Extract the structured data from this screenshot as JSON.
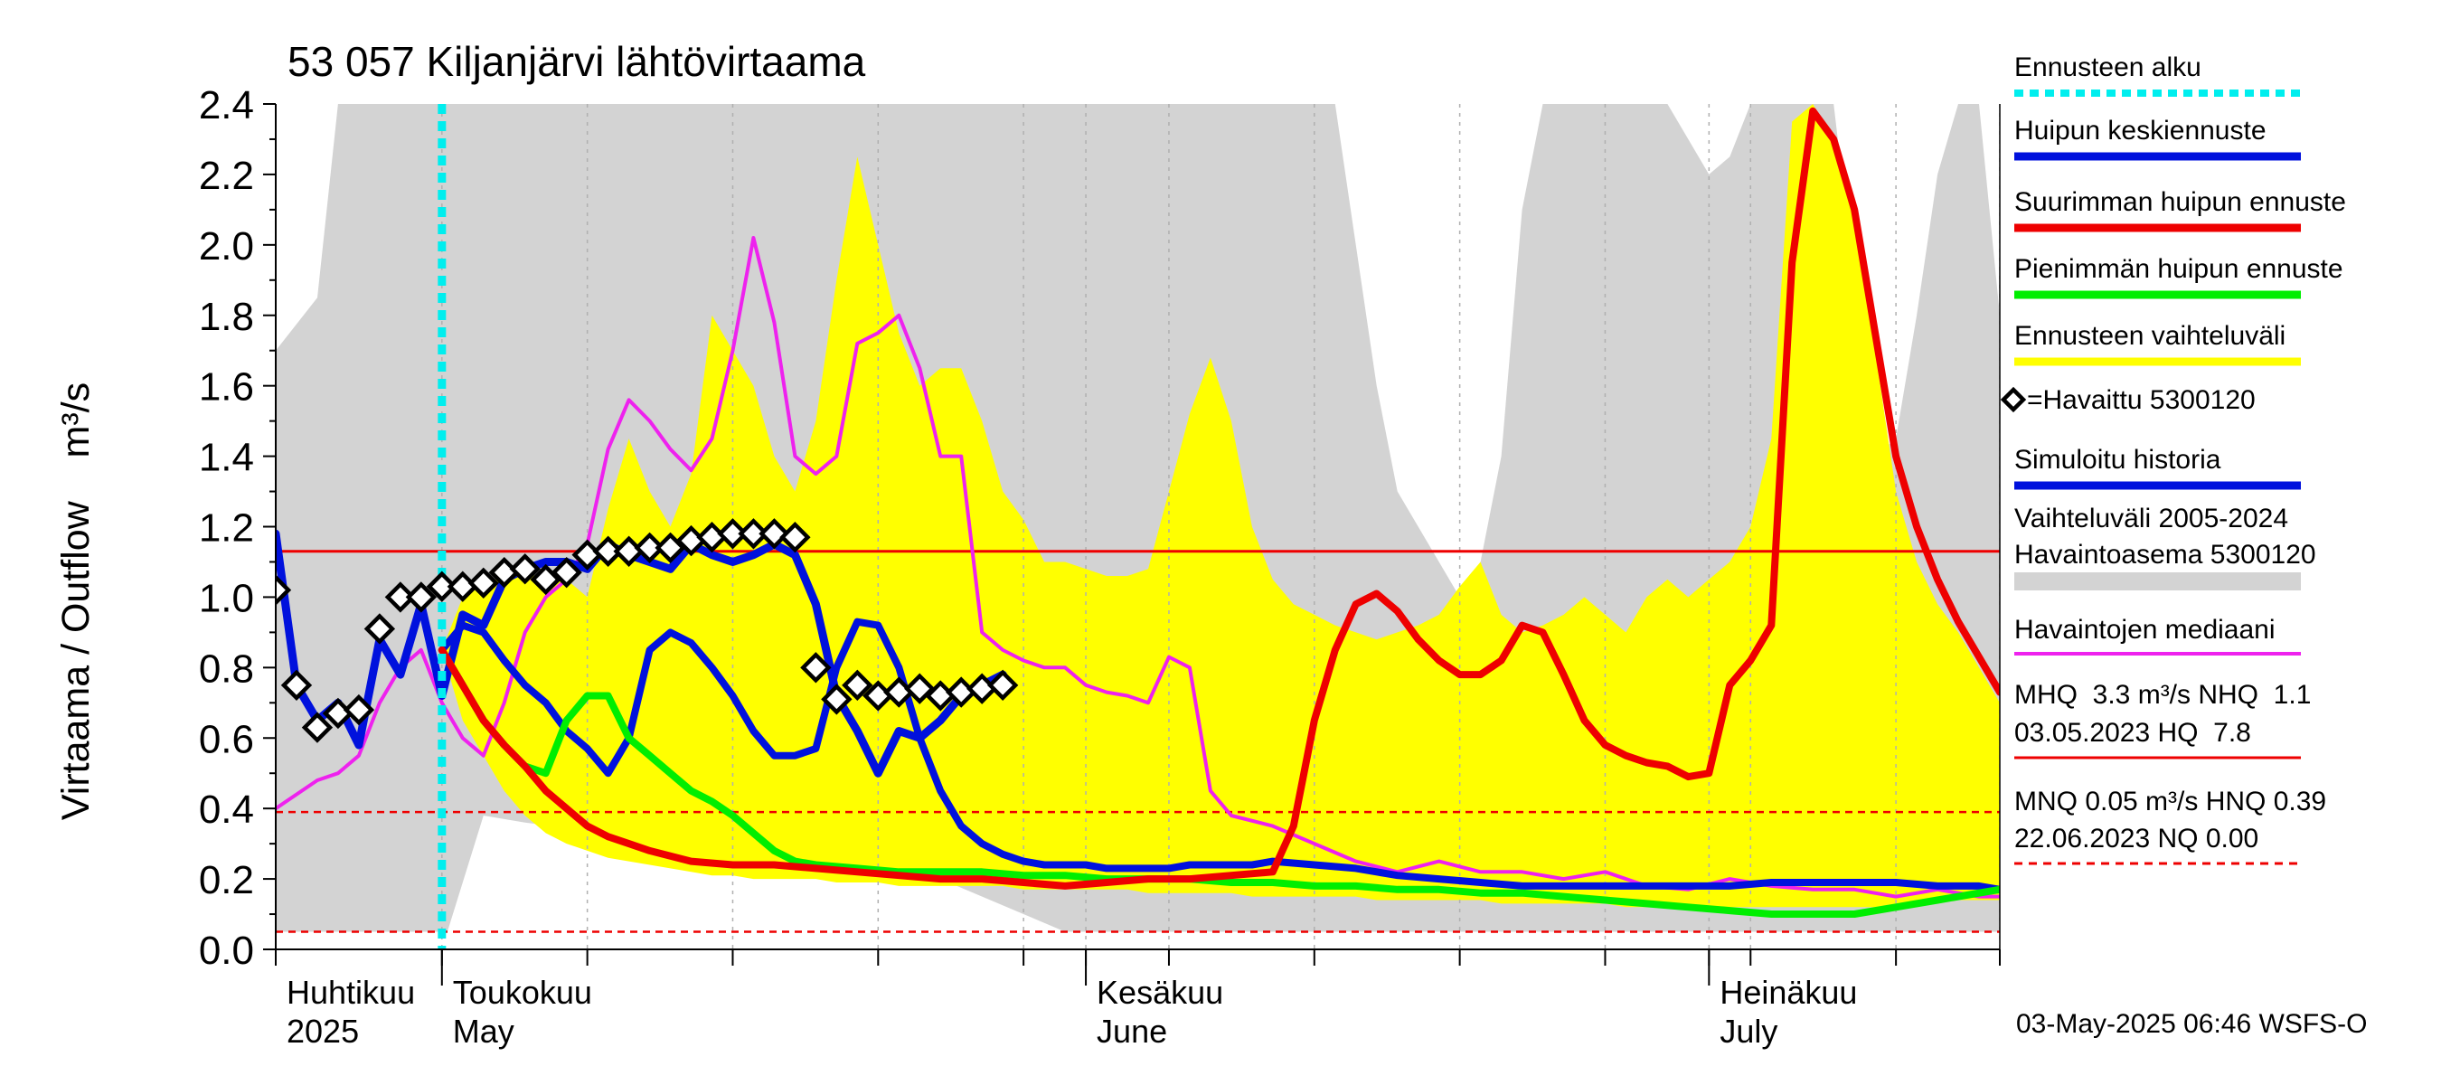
{
  "chart_data": {
    "type": "line",
    "title": "53 057 Kiljanjärvi lähtövirtaama",
    "ylabel": "Virtaama / Outflow    m³/s",
    "ylim": [
      0,
      2.4
    ],
    "xlim": [
      -8,
      75
    ],
    "y_ticks": [
      "0.0",
      "0.2",
      "0.4",
      "0.6",
      "0.8",
      "1.0",
      "1.2",
      "1.4",
      "1.6",
      "1.8",
      "2.0",
      "2.2",
      "2.4"
    ],
    "y_tick_values": [
      0,
      0.2,
      0.4,
      0.6,
      0.8,
      1.0,
      1.2,
      1.4,
      1.6,
      1.8,
      2.0,
      2.2,
      2.4
    ],
    "x_axis_note": "days relative to forecast start 2025-05-01",
    "months": [
      {
        "fi": "Huhtikuu",
        "en": "2025",
        "start_day": -30
      },
      {
        "fi": "Toukokuu",
        "en": "May",
        "start_day": 0
      },
      {
        "fi": "Kesäkuu",
        "en": "June",
        "start_day": 31
      },
      {
        "fi": "Heinäkuu",
        "en": "July",
        "start_day": 61
      }
    ],
    "x_tick_days": [
      -8,
      0,
      7,
      14,
      21,
      28,
      31,
      35,
      42,
      49,
      56,
      61,
      63,
      70,
      75
    ],
    "forecast_start_day": 0,
    "hq_line": 1.13,
    "hnq_line": 0.39,
    "nq_line": 0.05,
    "history_band": {
      "name": "Vaihteluväli 2005-2024 Havaintoasema 5300120",
      "x": [
        -8,
        -6,
        -5,
        -4,
        -3,
        -1,
        0,
        1,
        2,
        3,
        4,
        5,
        7,
        9,
        11,
        13,
        14,
        15,
        17,
        19,
        21,
        23,
        25,
        26,
        27,
        28,
        29,
        30,
        31,
        32,
        33,
        34,
        35,
        36,
        37,
        39,
        40,
        41,
        42,
        43,
        44,
        45,
        46,
        47,
        48,
        49,
        50,
        51,
        52,
        53,
        54,
        55,
        56,
        57,
        58,
        59,
        60,
        61,
        62,
        63,
        64,
        65,
        66,
        67,
        68,
        69,
        70,
        71,
        72,
        73,
        74,
        75
      ],
      "upper": [
        1.7,
        1.85,
        2.4,
        2.4,
        2.4,
        2.4,
        2.4,
        2.4,
        2.4,
        2.4,
        2.4,
        2.4,
        2.4,
        2.4,
        2.4,
        2.4,
        2.4,
        2.4,
        2.4,
        2.4,
        2.4,
        2.4,
        2.4,
        2.4,
        2.4,
        2.4,
        2.4,
        2.4,
        2.4,
        2.4,
        2.4,
        2.4,
        2.4,
        2.4,
        2.4,
        2.4,
        2.4,
        2.4,
        2.4,
        2.4,
        2.0,
        1.6,
        1.3,
        1.2,
        1.1,
        1.0,
        1.1,
        1.4,
        2.1,
        2.4,
        2.4,
        2.4,
        2.4,
        2.4,
        2.4,
        2.4,
        2.3,
        2.2,
        2.25,
        2.4,
        2.4,
        2.4,
        2.4,
        2.4,
        1.9,
        1.4,
        1.45,
        1.8,
        2.2,
        2.4,
        2.4,
        1.8
      ],
      "lower": [
        0.05,
        0.05,
        0.05,
        0.05,
        0.05,
        0.05,
        0.05,
        0.05,
        0.05,
        0.05,
        0.05,
        0.05,
        0.05,
        0.05,
        0.05,
        0.05,
        0.05,
        0.05,
        0.05,
        0.05,
        0.05,
        0.05,
        0.05,
        0.05,
        0.05,
        0.05,
        0.05,
        0.05,
        0.05,
        0.05,
        0.05,
        0.05,
        0.05,
        0.05,
        0.05,
        0.05,
        0.05,
        0.05,
        0.05,
        0.05,
        0.05,
        0.05,
        0.05,
        0.05,
        0.05,
        0.05,
        0.05,
        0.05,
        0.05,
        0.05,
        0.05,
        0.05,
        0.05,
        0.05,
        0.05,
        0.05,
        0.05,
        0.05,
        0.05,
        0.05,
        0.05,
        0.05,
        0.05,
        0.05,
        0.05,
        0.05,
        0.05,
        0.05,
        0.05,
        0.05,
        0.05,
        0.05
      ]
    },
    "white_gap": {
      "x": [
        0,
        2,
        4,
        8,
        12,
        16,
        20,
        24,
        28,
        30,
        32,
        34,
        36,
        38
      ],
      "upper": [
        0,
        0.38,
        0.36,
        0.33,
        0.3,
        0.27,
        0.25,
        0.2,
        0.1,
        0.05,
        0.02,
        0.01,
        0,
        0
      ]
    },
    "forecast_band": {
      "name": "Ennusteen vaihteluväli",
      "x": [
        0,
        1,
        2,
        3,
        4,
        5,
        6,
        7,
        8,
        9,
        10,
        11,
        12,
        13,
        14,
        15,
        16,
        17,
        18,
        19,
        20,
        21,
        22,
        23,
        24,
        25,
        26,
        27,
        28,
        29,
        30,
        31,
        32,
        33,
        34,
        35,
        36,
        37,
        38,
        39,
        40,
        41,
        42,
        43,
        44,
        45,
        46,
        47,
        48,
        49,
        50,
        51,
        52,
        53,
        54,
        55,
        56,
        57,
        58,
        59,
        60,
        61,
        62,
        63,
        64,
        65,
        66,
        67,
        68,
        69,
        70,
        71,
        72,
        73,
        74,
        75
      ],
      "upper": [
        0.85,
        1.0,
        1.05,
        1.05,
        1.07,
        1.05,
        1.05,
        1.0,
        1.25,
        1.45,
        1.3,
        1.2,
        1.35,
        1.8,
        1.7,
        1.6,
        1.4,
        1.3,
        1.5,
        1.9,
        2.25,
        2.0,
        1.75,
        1.6,
        1.65,
        1.65,
        1.5,
        1.3,
        1.22,
        1.1,
        1.1,
        1.08,
        1.06,
        1.06,
        1.08,
        1.3,
        1.52,
        1.68,
        1.5,
        1.2,
        1.05,
        0.98,
        0.95,
        0.92,
        0.9,
        0.88,
        0.9,
        0.92,
        0.95,
        1.03,
        1.1,
        0.95,
        0.9,
        0.92,
        0.95,
        1.0,
        0.95,
        0.9,
        1.0,
        1.05,
        1.0,
        1.05,
        1.1,
        1.2,
        1.45,
        2.35,
        2.4,
        2.3,
        2.1,
        1.7,
        1.3,
        1.1,
        0.98,
        0.9,
        0.8,
        0.7
      ],
      "lower": [
        0.85,
        0.65,
        0.55,
        0.45,
        0.38,
        0.33,
        0.3,
        0.28,
        0.26,
        0.25,
        0.24,
        0.23,
        0.22,
        0.21,
        0.21,
        0.2,
        0.2,
        0.2,
        0.2,
        0.19,
        0.19,
        0.19,
        0.18,
        0.18,
        0.18,
        0.18,
        0.18,
        0.18,
        0.17,
        0.17,
        0.17,
        0.17,
        0.17,
        0.17,
        0.16,
        0.16,
        0.16,
        0.16,
        0.16,
        0.15,
        0.15,
        0.15,
        0.15,
        0.15,
        0.15,
        0.14,
        0.14,
        0.14,
        0.14,
        0.14,
        0.14,
        0.13,
        0.13,
        0.13,
        0.13,
        0.13,
        0.13,
        0.12,
        0.12,
        0.12,
        0.12,
        0.12,
        0.12,
        0.12,
        0.12,
        0.12,
        0.12,
        0.12,
        0.12,
        0.12,
        0.13,
        0.13,
        0.13,
        0.14,
        0.14,
        0.14
      ]
    },
    "series": [
      {
        "name": "Havaintojen mediaani",
        "color": "#ee22ee",
        "x": [
          -8,
          -6,
          -5,
          -4,
          -3,
          -2,
          -1,
          0,
          1,
          2,
          3,
          4,
          5,
          6,
          7,
          8,
          9,
          10,
          11,
          12,
          13,
          14,
          15,
          16,
          17,
          18,
          19,
          20,
          21,
          22,
          23,
          24,
          25,
          26,
          27,
          28,
          29,
          30,
          31,
          32,
          33,
          34,
          35,
          36,
          37,
          38,
          40,
          42,
          44,
          46,
          48,
          50,
          52,
          54,
          56,
          58,
          60,
          62,
          64,
          66,
          68,
          70,
          72,
          74,
          75
        ],
        "y": [
          0.4,
          0.48,
          0.5,
          0.55,
          0.7,
          0.8,
          0.85,
          0.7,
          0.6,
          0.55,
          0.7,
          0.9,
          1.0,
          1.05,
          1.15,
          1.42,
          1.56,
          1.5,
          1.42,
          1.36,
          1.45,
          1.7,
          2.02,
          1.78,
          1.4,
          1.35,
          1.4,
          1.72,
          1.75,
          1.8,
          1.65,
          1.4,
          1.4,
          0.9,
          0.85,
          0.82,
          0.8,
          0.8,
          0.75,
          0.73,
          0.72,
          0.7,
          0.83,
          0.8,
          0.45,
          0.38,
          0.35,
          0.3,
          0.25,
          0.22,
          0.25,
          0.22,
          0.22,
          0.2,
          0.22,
          0.18,
          0.17,
          0.2,
          0.18,
          0.17,
          0.17,
          0.15,
          0.17,
          0.15,
          0.15
        ]
      },
      {
        "name": "Simuloitu historia",
        "color": "#0011dd",
        "x": [
          -8,
          -7,
          -6,
          -5,
          -4,
          -3,
          -2,
          -1,
          0,
          1,
          2,
          3,
          4,
          5,
          6,
          7,
          8,
          9,
          10,
          11,
          12,
          13,
          14,
          15,
          16,
          17,
          18,
          19,
          20,
          21,
          22,
          23,
          24,
          25,
          26,
          27
        ],
        "y": [
          1.18,
          0.75,
          0.65,
          0.7,
          0.58,
          0.88,
          0.78,
          0.98,
          0.72,
          0.95,
          0.92,
          1.05,
          1.08,
          1.1,
          1.1,
          1.08,
          1.15,
          1.12,
          1.1,
          1.08,
          1.15,
          1.12,
          1.1,
          1.12,
          1.15,
          1.12,
          0.98,
          0.72,
          0.62,
          0.5,
          0.62,
          0.6,
          0.65,
          0.72,
          0.75,
          0.78
        ]
      },
      {
        "name": "Huipun keskiennuste",
        "color": "#0011dd",
        "x": [
          0,
          1,
          2,
          3,
          4,
          5,
          6,
          7,
          8,
          9,
          10,
          11,
          12,
          13,
          14,
          15,
          16,
          17,
          18,
          19,
          20,
          21,
          22,
          23,
          24,
          25,
          26,
          27,
          28,
          29,
          30,
          31,
          32,
          33,
          34,
          35,
          36,
          37,
          38,
          39,
          40,
          42,
          44,
          46,
          48,
          50,
          52,
          54,
          56,
          58,
          60,
          62,
          64,
          66,
          68,
          70,
          72,
          74,
          75
        ],
        "y": [
          0.85,
          0.92,
          0.9,
          0.82,
          0.75,
          0.7,
          0.62,
          0.57,
          0.5,
          0.6,
          0.85,
          0.9,
          0.87,
          0.8,
          0.72,
          0.62,
          0.55,
          0.55,
          0.57,
          0.8,
          0.93,
          0.92,
          0.8,
          0.6,
          0.45,
          0.35,
          0.3,
          0.27,
          0.25,
          0.24,
          0.24,
          0.24,
          0.23,
          0.23,
          0.23,
          0.23,
          0.24,
          0.24,
          0.24,
          0.24,
          0.25,
          0.24,
          0.23,
          0.21,
          0.2,
          0.19,
          0.18,
          0.18,
          0.18,
          0.18,
          0.18,
          0.18,
          0.19,
          0.19,
          0.19,
          0.19,
          0.18,
          0.18,
          0.17
        ]
      },
      {
        "name": "Pienimmän huipun ennuste",
        "color": "#00ee00",
        "x": [
          0,
          1,
          2,
          3,
          4,
          5,
          6,
          7,
          8,
          9,
          10,
          11,
          12,
          13,
          14,
          15,
          16,
          17,
          18,
          20,
          22,
          24,
          26,
          28,
          30,
          32,
          34,
          36,
          38,
          40,
          42,
          44,
          46,
          48,
          50,
          52,
          54,
          56,
          58,
          60,
          62,
          64,
          66,
          68,
          70,
          72,
          74,
          75
        ],
        "y": [
          0.85,
          0.75,
          0.65,
          0.58,
          0.52,
          0.5,
          0.65,
          0.72,
          0.72,
          0.6,
          0.55,
          0.5,
          0.45,
          0.42,
          0.38,
          0.33,
          0.28,
          0.25,
          0.24,
          0.23,
          0.22,
          0.22,
          0.22,
          0.21,
          0.21,
          0.2,
          0.2,
          0.2,
          0.19,
          0.19,
          0.18,
          0.18,
          0.17,
          0.17,
          0.16,
          0.16,
          0.15,
          0.14,
          0.13,
          0.12,
          0.11,
          0.1,
          0.1,
          0.1,
          0.12,
          0.14,
          0.16,
          0.17
        ]
      },
      {
        "name": "Suurimman huipun ennuste",
        "color": "#ee0000",
        "x": [
          0,
          1,
          2,
          3,
          4,
          5,
          6,
          7,
          8,
          9,
          10,
          12,
          14,
          16,
          18,
          20,
          22,
          24,
          26,
          28,
          30,
          32,
          34,
          36,
          38,
          40,
          41,
          42,
          43,
          44,
          45,
          46,
          47,
          48,
          49,
          50,
          51,
          52,
          53,
          54,
          55,
          56,
          57,
          58,
          59,
          60,
          61,
          62,
          63,
          64,
          65,
          66,
          67,
          68,
          69,
          70,
          71,
          72,
          73,
          74,
          75
        ],
        "y": [
          0.85,
          0.75,
          0.65,
          0.58,
          0.52,
          0.45,
          0.4,
          0.35,
          0.32,
          0.3,
          0.28,
          0.25,
          0.24,
          0.24,
          0.23,
          0.22,
          0.21,
          0.2,
          0.2,
          0.19,
          0.18,
          0.19,
          0.2,
          0.2,
          0.21,
          0.22,
          0.35,
          0.65,
          0.85,
          0.98,
          1.01,
          0.96,
          0.88,
          0.82,
          0.78,
          0.78,
          0.82,
          0.92,
          0.9,
          0.78,
          0.65,
          0.58,
          0.55,
          0.53,
          0.52,
          0.49,
          0.5,
          0.75,
          0.82,
          0.92,
          1.95,
          2.38,
          2.3,
          2.1,
          1.75,
          1.4,
          1.2,
          1.05,
          0.93,
          0.83,
          0.73
        ]
      }
    ],
    "observed": {
      "name": "=Havaittu 5300120",
      "x": [
        -8,
        -7,
        -6,
        -5,
        -4,
        -3,
        -2,
        -1,
        0,
        1,
        2,
        3,
        4,
        5,
        6,
        7,
        8,
        9,
        10,
        11,
        12,
        13,
        14,
        15,
        16,
        17,
        18,
        19,
        20,
        21,
        22,
        23,
        24,
        25,
        26,
        27
      ],
      "y": [
        1.02,
        0.75,
        0.63,
        0.67,
        0.68,
        0.91,
        1.0,
        1.0,
        1.03,
        1.03,
        1.04,
        1.07,
        1.08,
        1.05,
        1.07,
        1.12,
        1.13,
        1.13,
        1.14,
        1.14,
        1.16,
        1.17,
        1.18,
        1.18,
        1.18,
        1.17,
        0.8,
        0.71,
        0.75,
        0.72,
        0.73,
        0.74,
        0.72,
        0.73,
        0.74,
        0.75
      ]
    },
    "legend": [
      {
        "label": "Ennusteen alku",
        "color": "#00eeee",
        "style": "dotted"
      },
      {
        "label": "Huipun keskiennuste",
        "color": "#0011dd",
        "style": "solid"
      },
      {
        "label": "Suurimman huipun ennuste",
        "color": "#ee0000",
        "style": "solid"
      },
      {
        "label": "Pienimmän huipun ennuste",
        "color": "#00ee00",
        "style": "solid"
      },
      {
        "label": "Ennusteen vaihteluväli",
        "color": "#ffff00",
        "style": "solid"
      },
      {
        "label": "=Havaittu 5300120",
        "color": "#000000",
        "style": "marker"
      },
      {
        "label": "Simuloitu historia",
        "color": "#0011dd",
        "style": "solid"
      },
      {
        "label": "Vaihteluväli 2005-2024",
        "label2": " Havaintoasema 5300120",
        "color": "#d3d3d3",
        "style": "band"
      },
      {
        "label": "Havaintojen mediaani",
        "color": "#ee22ee",
        "style": "solid"
      }
    ],
    "stats": {
      "line1": "MHQ  3.3 m³/s NHQ  1.1",
      "line2": "03.05.2023 HQ  7.8",
      "line3": "MNQ 0.05 m³/s HNQ 0.39",
      "line4": "22.06.2023 NQ 0.00"
    },
    "footer": "03-May-2025 06:46 WSFS-O"
  }
}
